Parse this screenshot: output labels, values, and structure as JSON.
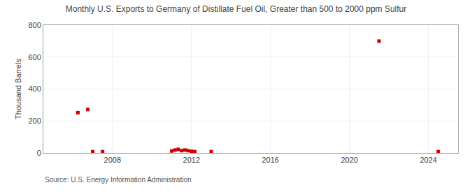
{
  "chart_data": {
    "type": "scatter",
    "title": "Monthly U.S. Exports to Germany of Distillate Fuel Oil, Greater than 500 to 2000 ppm Sulfur",
    "ylabel": "Thousand Barrels",
    "annotations": [
      "Source: U.S. Energy Information Administration"
    ],
    "x": [
      2006.25,
      2006.75,
      2007.0,
      2007.5,
      2011.0,
      2011.17,
      2011.33,
      2011.5,
      2011.67,
      2011.83,
      2012.0,
      2012.17,
      2013.0,
      2021.5,
      2024.5
    ],
    "values": [
      252,
      272,
      8,
      8,
      12,
      18,
      22,
      14,
      18,
      14,
      10,
      8,
      8,
      700,
      8
    ],
    "color": "#cc0000",
    "marker": "square",
    "xlim": [
      2004.5,
      2025.5
    ],
    "xticks": [
      2008,
      2012,
      2016,
      2020,
      2024
    ],
    "ylim": [
      0,
      800
    ],
    "yticks": [
      0,
      200,
      400,
      600,
      800
    ],
    "grid": true
  }
}
